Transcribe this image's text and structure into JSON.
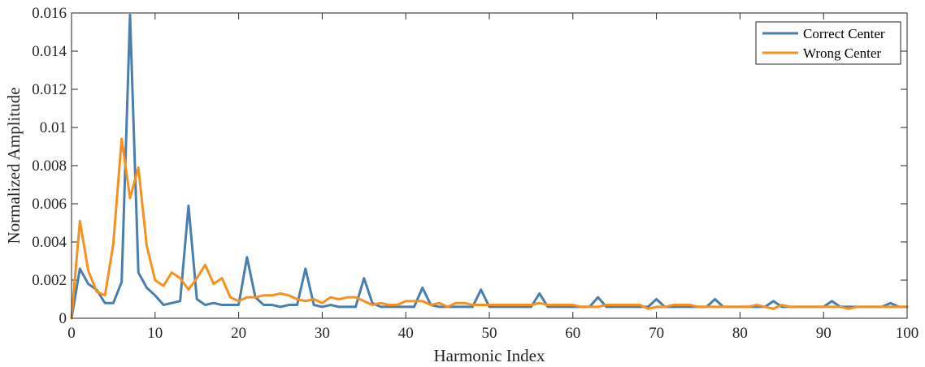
{
  "chart_data": {
    "type": "line",
    "title": "",
    "xlabel": "Harmonic Index",
    "ylabel": "Normalized Amplitude",
    "xlim": [
      0,
      100
    ],
    "ylim": [
      0,
      0.016
    ],
    "xticks": [
      0,
      10,
      20,
      30,
      40,
      50,
      60,
      70,
      80,
      90,
      100
    ],
    "xtick_labels": [
      "0",
      "10",
      "20",
      "30",
      "40",
      "50",
      "60",
      "70",
      "80",
      "90",
      "100"
    ],
    "yticks": [
      0,
      0.002,
      0.004,
      0.006,
      0.008,
      0.01,
      0.012,
      0.014,
      0.016
    ],
    "ytick_labels": [
      "0",
      "0.002",
      "0.004",
      "0.006",
      "0.008",
      "0.01",
      "0.012",
      "0.014",
      "0.016"
    ],
    "grid": false,
    "legend_position": "top-right",
    "series": [
      {
        "name": "Correct Center",
        "color": "#4A7EAD",
        "values": [
          0,
          0.0026,
          0.0018,
          0.0015,
          0.0008,
          0.0008,
          0.0019,
          0.0159,
          0.0024,
          0.0016,
          0.0012,
          0.0007,
          0.0008,
          0.0009,
          0.0059,
          0.001,
          0.0007,
          0.0008,
          0.0007,
          0.0007,
          0.0007,
          0.0032,
          0.0011,
          0.0007,
          0.0007,
          0.0006,
          0.0007,
          0.0007,
          0.0026,
          0.0007,
          0.0006,
          0.0007,
          0.0006,
          0.0006,
          0.0006,
          0.0021,
          0.0008,
          0.0006,
          0.0006,
          0.0006,
          0.0006,
          0.0006,
          0.0016,
          0.0007,
          0.0006,
          0.0006,
          0.0006,
          0.0006,
          0.0006,
          0.0015,
          0.0006,
          0.0006,
          0.0006,
          0.0006,
          0.0006,
          0.0006,
          0.0013,
          0.0006,
          0.0006,
          0.0006,
          0.0006,
          0.0006,
          0.0006,
          0.0011,
          0.0006,
          0.0006,
          0.0006,
          0.0006,
          0.0006,
          0.0006,
          0.001,
          0.0006,
          0.0006,
          0.0006,
          0.0006,
          0.0006,
          0.0006,
          0.001,
          0.0006,
          0.0006,
          0.0006,
          0.0006,
          0.0006,
          0.0006,
          0.0009,
          0.0006,
          0.0006,
          0.0006,
          0.0006,
          0.0006,
          0.0006,
          0.0009,
          0.0006,
          0.0006,
          0.0006,
          0.0006,
          0.0006,
          0.0006,
          0.0008,
          0.0006,
          0.0006
        ]
      },
      {
        "name": "Wrong Center",
        "color": "#F5921E",
        "values": [
          0,
          0.0051,
          0.0025,
          0.0014,
          0.0012,
          0.0039,
          0.0094,
          0.0063,
          0.0079,
          0.0038,
          0.002,
          0.0017,
          0.0024,
          0.0021,
          0.0015,
          0.0021,
          0.0028,
          0.0018,
          0.0021,
          0.0011,
          0.0009,
          0.0011,
          0.0011,
          0.0012,
          0.0012,
          0.0013,
          0.0012,
          0.001,
          0.0009,
          0.001,
          0.0008,
          0.0011,
          0.001,
          0.0011,
          0.0011,
          0.0009,
          0.0007,
          0.0008,
          0.0007,
          0.0007,
          0.0009,
          0.0009,
          0.0009,
          0.0007,
          0.0008,
          0.0006,
          0.0008,
          0.0008,
          0.0007,
          0.0007,
          0.0007,
          0.0007,
          0.0007,
          0.0007,
          0.0007,
          0.0007,
          0.0008,
          0.0007,
          0.0007,
          0.0007,
          0.0007,
          0.0006,
          0.0006,
          0.0006,
          0.0007,
          0.0007,
          0.0007,
          0.0007,
          0.0007,
          0.0005,
          0.0006,
          0.0006,
          0.0007,
          0.0007,
          0.0007,
          0.0006,
          0.0006,
          0.0006,
          0.0006,
          0.0006,
          0.0006,
          0.0006,
          0.0007,
          0.0006,
          0.0005,
          0.0007,
          0.0006,
          0.0006,
          0.0006,
          0.0006,
          0.0006,
          0.0006,
          0.0006,
          0.0005,
          0.0006,
          0.0006,
          0.0006,
          0.0006,
          0.0006,
          0.0006,
          0.0006
        ]
      }
    ]
  }
}
